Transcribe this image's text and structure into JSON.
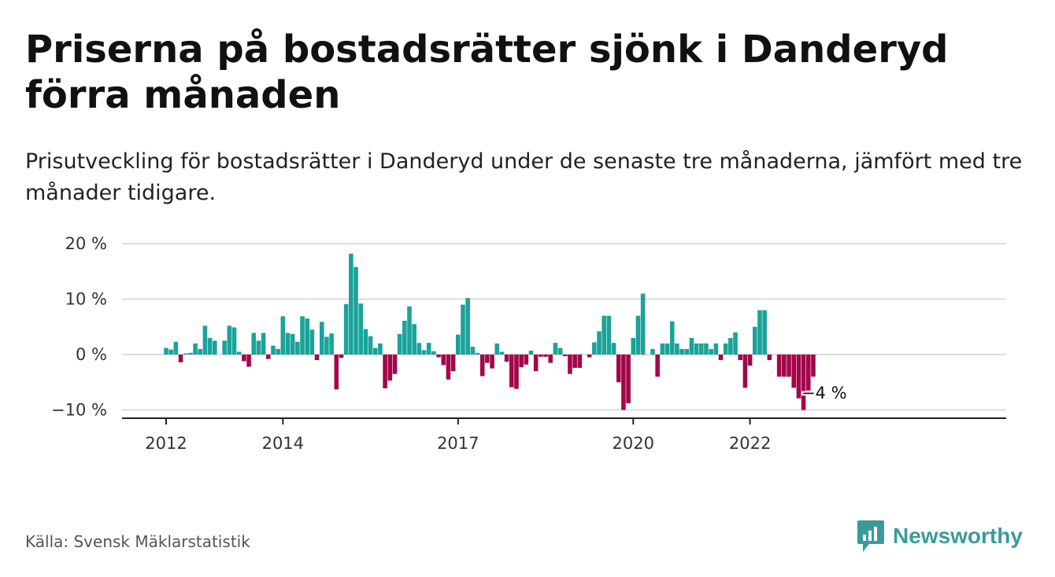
{
  "title": "Priserna på bostadsrätter sjönk i Danderyd förra månaden",
  "subtitle": "Prisutveckling för bostadsrätter i Danderyd under de senaste tre månaderna, jämfört med tre månader tidigare.",
  "source": "Källa: Svensk Mäklarstatistik",
  "brand": "Newsworthy",
  "colors": {
    "positive": "#1aa39a",
    "negative": "#a3074a",
    "brand": "#3a9c99"
  },
  "chart_data": {
    "type": "bar",
    "title": "Priserna på bostadsrätter sjönk i Danderyd förra månaden",
    "subtitle": "Prisutveckling för bostadsrätter i Danderyd under de senaste tre månaderna, jämfört med tre månader tidigare.",
    "xlabel": "",
    "ylabel": "",
    "ylim": [
      -11,
      20
    ],
    "yticks": [
      20,
      10,
      0,
      -10
    ],
    "ytick_labels": [
      "20 %",
      "10 %",
      "0 %",
      "−10 %"
    ],
    "grid": true,
    "x_start": "2012-01",
    "xticks": [
      {
        "label": "2012",
        "index": 0
      },
      {
        "label": "2014",
        "index": 24
      },
      {
        "label": "2017",
        "index": 60
      },
      {
        "label": "2020",
        "index": 96
      },
      {
        "label": "2022",
        "index": 120
      }
    ],
    "values": [
      1.2,
      0.9,
      2.3,
      -1.4,
      0.2,
      0.3,
      2.0,
      1.0,
      5.2,
      3.0,
      2.5,
      0.0,
      2.5,
      5.2,
      4.9,
      0.5,
      -1.2,
      -2.2,
      3.9,
      2.5,
      3.9,
      -0.8,
      1.6,
      1.0,
      6.9,
      3.9,
      3.7,
      2.3,
      6.9,
      6.5,
      4.5,
      -1.0,
      5.9,
      3.2,
      3.8,
      -6.3,
      -0.6,
      9.1,
      18.2,
      15.8,
      9.2,
      4.6,
      3.3,
      1.2,
      2.0,
      -6.1,
      -4.7,
      -3.5,
      3.7,
      6.1,
      8.7,
      5.5,
      2.1,
      0.8,
      2.1,
      0.6,
      -0.5,
      -1.9,
      -4.5,
      -3.0,
      3.6,
      9.0,
      10.2,
      1.4,
      0.3,
      -3.9,
      -1.5,
      -2.5,
      2.0,
      0.5,
      -1.3,
      -5.9,
      -6.2,
      -2.3,
      -1.8,
      0.7,
      -3.0,
      -0.4,
      -0.4,
      -1.5,
      2.1,
      1.2,
      -0.3,
      -3.5,
      -2.4,
      -2.4,
      0.0,
      -0.5,
      2.2,
      4.2,
      7.0,
      7.0,
      2.1,
      -5.0,
      -10.0,
      -8.8,
      3.0,
      7.0,
      11.0,
      0.0,
      1.0,
      -4.0,
      2.0,
      2.0,
      6.0,
      2.0,
      1.0,
      1.0,
      3.0,
      2.0,
      2.0,
      2.0,
      1.0,
      2.0,
      -1.0,
      2.0,
      3.0,
      4.0,
      -1.0,
      -6.0,
      -2.0,
      5.0,
      8.0,
      8.0,
      -1.0,
      0.0,
      -4.0,
      -4.0,
      -4.0,
      -6.0,
      -7.9,
      -10.0,
      -6.5,
      -4.0
    ],
    "annotations": [
      {
        "text": "−4 %",
        "index": 133
      }
    ]
  }
}
